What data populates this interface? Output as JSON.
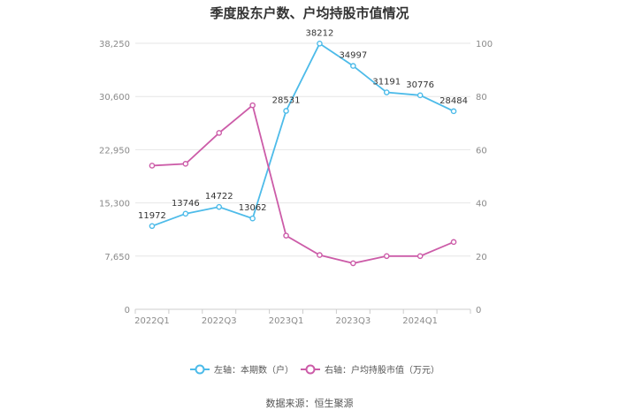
{
  "chart_data": {
    "type": "line",
    "title": "季度股东户数、户均持股市值情况",
    "categories": [
      "2022Q1",
      "2022Q2",
      "2022Q3",
      "2022Q4",
      "2023Q1",
      "2023Q2",
      "2023Q3",
      "2023Q4",
      "2024Q1",
      "2024Q2"
    ],
    "x_tick_labels": [
      "2022Q1",
      "2022Q3",
      "2023Q1",
      "2023Q3",
      "2024Q1"
    ],
    "left_axis": {
      "ticks": [
        0,
        7650,
        15300,
        22950,
        30600,
        38250
      ],
      "tick_labels": [
        "0",
        "7,650",
        "15,300",
        "22,950",
        "30,600",
        "38,250"
      ],
      "ylim": [
        0,
        38250
      ]
    },
    "right_axis": {
      "ticks": [
        0,
        20,
        40,
        60,
        80,
        100
      ],
      "tick_labels": [
        "0",
        "20",
        "40",
        "60",
        "80",
        "100"
      ],
      "ylim": [
        0,
        100
      ]
    },
    "series": [
      {
        "name": "左轴：本期数（户）",
        "axis": "left",
        "color": "#4dbbe9",
        "values": [
          11972,
          13746,
          14722,
          13062,
          28531,
          38212,
          34997,
          31191,
          30776,
          28484
        ],
        "labels": [
          "11972",
          "13746",
          "14722",
          "13062",
          "28531",
          "38212",
          "34997",
          "31191",
          "30776",
          "28484"
        ]
      },
      {
        "name": "右轴：户均持股市值（万元）",
        "axis": "right",
        "color": "#cc5ca8",
        "values": [
          54,
          54.7,
          66.3,
          76.7,
          27.7,
          20.4,
          17.3,
          20,
          20,
          25.3
        ]
      }
    ],
    "grid": true,
    "legend_position": "bottom"
  },
  "footer": {
    "source": "数据来源：恒生聚源"
  }
}
